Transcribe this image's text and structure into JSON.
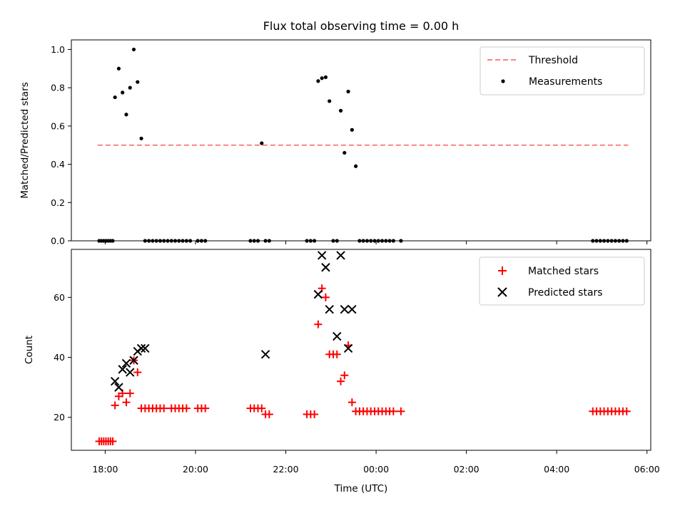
{
  "title": "Flux total observing time = 0.00 h",
  "chart_data": [
    {
      "type": "scatter",
      "ylabel": "Matched/Predicted stars",
      "xlabel": "",
      "xlim": [
        "17:15",
        "30:05"
      ],
      "ylim": [
        0.0,
        1.05
      ],
      "yticks": [
        0.0,
        0.2,
        0.4,
        0.6,
        0.8,
        1.0
      ],
      "ytick_labels": [
        "0.0",
        "0.2",
        "0.4",
        "0.6",
        "0.8",
        "1.0"
      ],
      "legend_position": "top-right",
      "threshold": {
        "name": "Threshold",
        "value": 0.5,
        "x_range": [
          "17:50",
          "29:35"
        ],
        "color": "#ff8080"
      },
      "series": [
        {
          "name": "Measurements",
          "color": "#000000",
          "x": [
            "17:52",
            "17:55",
            "17:58",
            "18:01",
            "18:04",
            "18:07",
            "18:10",
            "18:13",
            "18:18",
            "18:23",
            "18:28",
            "18:33",
            "18:38",
            "18:43",
            "18:48",
            "18:53",
            "18:58",
            "19:03",
            "19:08",
            "19:13",
            "19:18",
            "19:23",
            "19:28",
            "19:33",
            "19:38",
            "19:43",
            "19:48",
            "19:53",
            "20:03",
            "20:08",
            "20:13",
            "21:13",
            "21:18",
            "21:23",
            "21:28",
            "21:33",
            "21:38",
            "22:28",
            "22:33",
            "22:38",
            "22:43",
            "22:48",
            "22:53",
            "22:58",
            "23:03",
            "23:08",
            "23:13",
            "23:18",
            "23:23",
            "23:28",
            "23:33",
            "23:38",
            "23:43",
            "23:48",
            "23:53",
            "23:58",
            "24:03",
            "24:08",
            "24:13",
            "24:18",
            "24:23",
            "24:33",
            "28:48",
            "28:53",
            "28:58",
            "29:03",
            "29:08",
            "29:13",
            "29:18",
            "29:23",
            "29:28",
            "29:33"
          ],
          "y": [
            0,
            0,
            0,
            0,
            0,
            0,
            0,
            0.75,
            0.9,
            0.775,
            0.66,
            0.8,
            1.0,
            0.83,
            0.535,
            0,
            0,
            0,
            0,
            0,
            0,
            0,
            0,
            0,
            0,
            0,
            0,
            0,
            0,
            0,
            0,
            0,
            0,
            0,
            0.51,
            0,
            0,
            0,
            0,
            0,
            0.835,
            0.85,
            0.855,
            0.73,
            0,
            0,
            0.68,
            0.46,
            0.78,
            0.58,
            0.39,
            0,
            0,
            0,
            0,
            0,
            0,
            0,
            0,
            0,
            0,
            0,
            0,
            0,
            0,
            0,
            0,
            0,
            0,
            0,
            0,
            0
          ]
        }
      ]
    },
    {
      "type": "scatter",
      "ylabel": "Count",
      "xlabel": "Time (UTC)",
      "xlim": [
        "17:15",
        "30:05"
      ],
      "ylim": [
        9,
        76
      ],
      "yticks": [
        20,
        40,
        60
      ],
      "ytick_labels": [
        "20",
        "40",
        "60"
      ],
      "xticks": [
        "18:00",
        "20:00",
        "22:00",
        "24:00",
        "26:00",
        "28:00",
        "30:00"
      ],
      "xtick_labels": [
        "18:00",
        "20:00",
        "22:00",
        "00:00",
        "02:00",
        "04:00",
        "06:00"
      ],
      "legend_position": "top-right",
      "series": [
        {
          "name": "Matched stars",
          "color": "#ff0000",
          "x": [
            "17:52",
            "17:55",
            "17:58",
            "18:01",
            "18:04",
            "18:07",
            "18:10",
            "18:13",
            "18:18",
            "18:23",
            "18:28",
            "18:33",
            "18:38",
            "18:43",
            "18:48",
            "18:53",
            "18:58",
            "19:03",
            "19:08",
            "19:13",
            "19:18",
            "19:28",
            "19:33",
            "19:38",
            "19:43",
            "19:48",
            "20:03",
            "20:08",
            "20:13",
            "21:13",
            "21:18",
            "21:23",
            "21:28",
            "21:33",
            "21:38",
            "22:28",
            "22:33",
            "22:38",
            "22:43",
            "22:48",
            "22:53",
            "22:58",
            "23:03",
            "23:08",
            "23:13",
            "23:18",
            "23:23",
            "23:28",
            "23:33",
            "23:38",
            "23:43",
            "23:48",
            "23:53",
            "23:58",
            "24:03",
            "24:08",
            "24:13",
            "24:18",
            "24:23",
            "24:33",
            "28:48",
            "28:53",
            "28:58",
            "29:03",
            "29:08",
            "29:13",
            "29:18",
            "29:23",
            "29:28",
            "29:33"
          ],
          "y": [
            12,
            12,
            12,
            12,
            12,
            12,
            12,
            24,
            27,
            28,
            25,
            28,
            39,
            35,
            23,
            23,
            23,
            23,
            23,
            23,
            23,
            23,
            23,
            23,
            23,
            23,
            23,
            23,
            23,
            23,
            23,
            23,
            23,
            21,
            21,
            21,
            21,
            21,
            51,
            63,
            60,
            41,
            41,
            41,
            32,
            34,
            44,
            25,
            22,
            22,
            22,
            22,
            22,
            22,
            22,
            22,
            22,
            22,
            22,
            22,
            22,
            22,
            22,
            22,
            22,
            22,
            22,
            22,
            22,
            22
          ]
        },
        {
          "name": "Predicted stars",
          "color": "#000000",
          "x": [
            "18:13",
            "18:18",
            "18:23",
            "18:28",
            "18:33",
            "18:38",
            "18:43",
            "18:48",
            "18:53",
            "21:33",
            "22:43",
            "22:48",
            "22:53",
            "22:58",
            "23:08",
            "23:13",
            "23:18",
            "23:23",
            "23:28"
          ],
          "y": [
            32,
            30,
            36,
            38,
            35,
            39,
            42,
            43,
            43,
            41,
            61,
            74,
            70,
            56,
            47,
            74,
            56,
            43,
            56
          ]
        }
      ]
    }
  ]
}
